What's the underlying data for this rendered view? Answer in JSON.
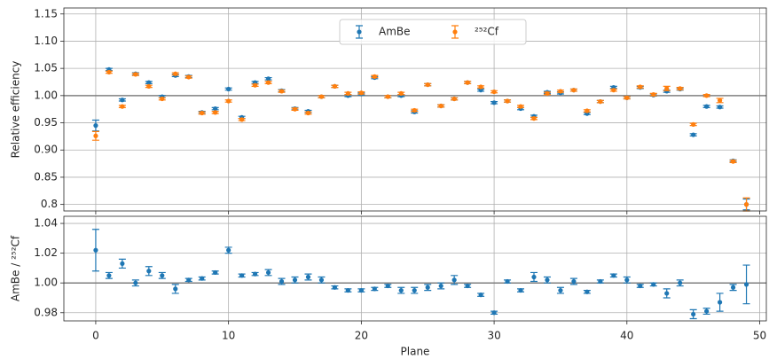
{
  "chart_data": [
    {
      "type": "errorbar",
      "ylabel": "Relative efficiency",
      "x": [
        0,
        1,
        2,
        3,
        4,
        5,
        6,
        7,
        8,
        9,
        10,
        11,
        12,
        13,
        14,
        15,
        16,
        17,
        18,
        19,
        20,
        21,
        22,
        23,
        24,
        25,
        26,
        27,
        28,
        29,
        30,
        31,
        32,
        33,
        34,
        35,
        36,
        37,
        38,
        39,
        40,
        41,
        42,
        43,
        44,
        45,
        46,
        47,
        48,
        49
      ],
      "series": [
        {
          "name": "AmBe",
          "color": "#1f77b4",
          "values": [
            0.945,
            1.048,
            0.992,
            1.04,
            1.024,
            0.998,
            1.037,
            1.035,
            0.969,
            0.976,
            1.012,
            0.96,
            1.024,
            1.031,
            1.009,
            0.976,
            0.971,
            0.998,
            1.017,
            1.0,
            1.003,
            1.033,
            0.998,
            1.0,
            0.97,
            1.02,
            0.981,
            0.994,
            1.024,
            1.01,
            0.987,
            0.99,
            0.976,
            0.962,
            1.006,
            1.005,
            1.01,
            0.967,
            0.989,
            1.015,
            0.996,
            1.015,
            1.001,
            1.008,
            1.012,
            0.928,
            0.98,
            0.979,
            0.88,
            0.8
          ],
          "errors": [
            0.01,
            0.002,
            0.002,
            0.002,
            0.002,
            0.002,
            0.002,
            0.002,
            0.002,
            0.002,
            0.002,
            0.002,
            0.002,
            0.002,
            0.002,
            0.002,
            0.002,
            0.002,
            0.002,
            0.002,
            0.002,
            0.002,
            0.002,
            0.002,
            0.002,
            0.002,
            0.002,
            0.002,
            0.002,
            0.002,
            0.002,
            0.002,
            0.002,
            0.002,
            0.002,
            0.002,
            0.002,
            0.002,
            0.002,
            0.002,
            0.002,
            0.002,
            0.002,
            0.002,
            0.002,
            0.002,
            0.002,
            0.002,
            0.002,
            0.01
          ]
        },
        {
          "name": "²⁵²Cf",
          "color": "#ff7f0e",
          "values": [
            0.926,
            1.043,
            0.98,
            1.039,
            1.017,
            0.994,
            1.04,
            1.034,
            0.968,
            0.969,
            0.99,
            0.956,
            1.019,
            1.024,
            1.008,
            0.975,
            0.968,
            0.998,
            1.017,
            1.004,
            1.005,
            1.035,
            0.998,
            1.004,
            0.973,
            1.02,
            0.981,
            0.994,
            1.024,
            1.016,
            1.007,
            0.99,
            0.98,
            0.958,
            1.004,
            1.008,
            1.01,
            0.972,
            0.989,
            1.01,
            0.996,
            1.016,
            1.002,
            1.013,
            1.013,
            0.947,
            1.0,
            0.991,
            0.879,
            0.8
          ],
          "errors": [
            0.008,
            0.002,
            0.002,
            0.002,
            0.002,
            0.002,
            0.002,
            0.002,
            0.002,
            0.002,
            0.002,
            0.002,
            0.002,
            0.002,
            0.002,
            0.002,
            0.002,
            0.002,
            0.002,
            0.002,
            0.002,
            0.002,
            0.002,
            0.002,
            0.002,
            0.002,
            0.002,
            0.002,
            0.002,
            0.002,
            0.002,
            0.002,
            0.002,
            0.002,
            0.002,
            0.002,
            0.002,
            0.002,
            0.002,
            0.002,
            0.002,
            0.002,
            0.002,
            0.004,
            0.002,
            0.002,
            0.002,
            0.004,
            0.002,
            0.012
          ]
        }
      ],
      "xlim": [
        -2.4,
        50.5
      ],
      "xticks": [
        0,
        10,
        20,
        30,
        40,
        50
      ],
      "ylim": [
        0.788,
        1.161
      ],
      "yticks": [
        0.8,
        0.85,
        {
          "value": 0.9,
          "label": "0.90"
        },
        0.95,
        {
          "value": 1.0,
          "label": "1.00"
        },
        1.05,
        {
          "value": 1.1,
          "label": "1.10"
        },
        1.15
      ],
      "reference_line": 1,
      "grid": true,
      "legend": "upper center"
    },
    {
      "type": "errorbar",
      "ylabel": "AmBe / ²⁵²Cf",
      "xlabel": "Plane",
      "x": [
        0,
        1,
        2,
        3,
        4,
        5,
        6,
        7,
        8,
        9,
        10,
        11,
        12,
        13,
        14,
        15,
        16,
        17,
        18,
        19,
        20,
        21,
        22,
        23,
        24,
        25,
        26,
        27,
        28,
        29,
        30,
        31,
        32,
        33,
        34,
        35,
        36,
        37,
        38,
        39,
        40,
        41,
        42,
        43,
        44,
        45,
        46,
        47,
        48,
        49
      ],
      "series": [
        {
          "color": "#1f77b4",
          "values": [
            1.022,
            1.005,
            1.013,
            1.0,
            1.008,
            1.005,
            0.996,
            1.002,
            1.003,
            1.007,
            1.022,
            1.005,
            1.006,
            1.007,
            1.001,
            1.002,
            1.004,
            1.002,
            0.997,
            0.995,
            0.995,
            0.996,
            0.998,
            0.995,
            0.995,
            0.997,
            0.998,
            1.002,
            0.998,
            0.992,
            0.98,
            1.001,
            0.995,
            1.004,
            1.002,
            0.995,
            1.001,
            0.994,
            1.001,
            1.005,
            1.002,
            0.998,
            0.999,
            0.993,
            1.0,
            0.979,
            0.981,
            0.987,
            0.997,
            0.999
          ],
          "errors": [
            0.014,
            0.002,
            0.003,
            0.002,
            0.003,
            0.002,
            0.003,
            0.001,
            0.001,
            0.001,
            0.002,
            0.001,
            0.001,
            0.002,
            0.002,
            0.002,
            0.002,
            0.002,
            0.001,
            0.001,
            0.001,
            0.001,
            0.001,
            0.002,
            0.002,
            0.002,
            0.002,
            0.003,
            0.001,
            0.001,
            0.001,
            0.001,
            0.001,
            0.003,
            0.002,
            0.002,
            0.002,
            0.001,
            0.001,
            0.001,
            0.002,
            0.001,
            0.001,
            0.003,
            0.002,
            0.003,
            0.002,
            0.006,
            0.002,
            0.013
          ]
        }
      ],
      "xlim": [
        -2.4,
        50.5
      ],
      "xticks": [
        0,
        10,
        20,
        30,
        40,
        50
      ],
      "ylim": [
        0.9745,
        1.0448
      ],
      "yticks": [
        0.98,
        {
          "value": 1.0,
          "label": "1.00"
        },
        1.02,
        1.04
      ],
      "reference_line": 1,
      "grid": true
    }
  ]
}
